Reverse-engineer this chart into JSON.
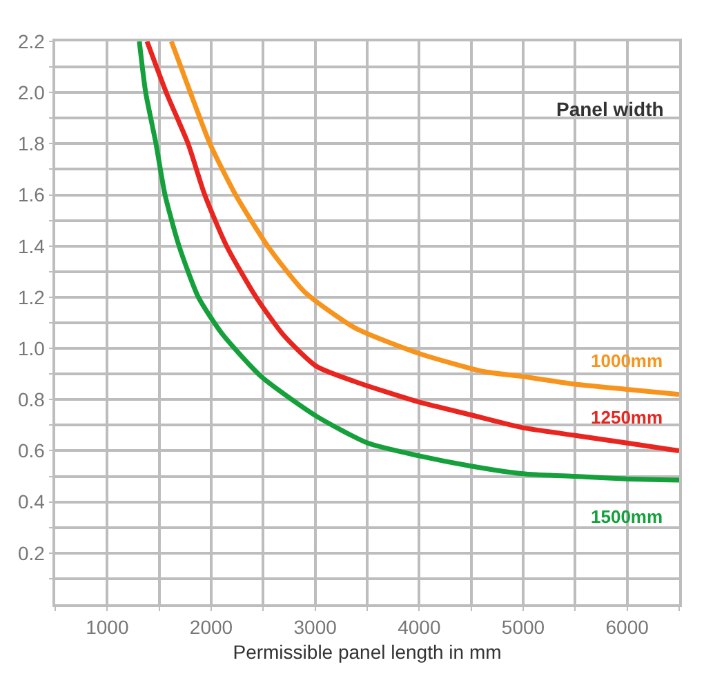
{
  "chart_data": {
    "type": "line",
    "xlabel": "Permissible panel length in mm",
    "series": [
      {
        "color": "#f7941d",
        "x": [
          1617,
          1800,
          1988,
          2235,
          2543,
          2900,
          3383,
          4000,
          4617,
          5000,
          5500,
          6000,
          6500
        ],
        "values": [
          2.2,
          2.0,
          1.8,
          1.6,
          1.4,
          1.22,
          1.08,
          0.98,
          0.91,
          0.89,
          0.86,
          0.84,
          0.82
        ]
      },
      {
        "color": "#e8251f",
        "x": [
          1383,
          1568,
          1778,
          1938,
          2148,
          2432,
          2700,
          3012,
          3383,
          4000,
          4500,
          5000,
          5500,
          6000,
          6500
        ],
        "values": [
          2.2,
          2.0,
          1.8,
          1.6,
          1.4,
          1.2,
          1.05,
          0.93,
          0.87,
          0.79,
          0.74,
          0.69,
          0.66,
          0.63,
          0.6
        ]
      },
      {
        "color": "#15a03c",
        "x": [
          1309,
          1370,
          1469,
          1556,
          1691,
          1877,
          2100,
          2481,
          3012,
          3506,
          4000,
          4500,
          5000,
          5500,
          6000,
          6500
        ],
        "values": [
          2.2,
          2.0,
          1.8,
          1.6,
          1.4,
          1.2,
          1.06,
          0.89,
          0.735,
          0.63,
          0.58,
          0.54,
          0.51,
          0.5,
          0.49,
          0.485
        ]
      }
    ],
    "xlim": [
      500,
      6500
    ],
    "xticks": [
      {
        "value": 500,
        "label": null
      },
      1000,
      {
        "value": 1500,
        "label": null
      },
      2000,
      {
        "value": 2500,
        "label": null
      },
      3000,
      {
        "value": 3500,
        "label": null
      },
      4000,
      {
        "value": 4500,
        "label": null
      },
      5000,
      {
        "value": 5500,
        "label": null
      },
      6000,
      {
        "value": 6500,
        "label": null
      }
    ],
    "ylim": [
      0,
      2.2
    ],
    "yticks": [
      {
        "value": 0.1,
        "label": null
      },
      0.2,
      {
        "value": 0.3,
        "label": null
      },
      0.4,
      {
        "value": 0.5,
        "label": null
      },
      0.6,
      {
        "value": 0.7,
        "label": null
      },
      0.8,
      {
        "value": 0.9,
        "label": null
      },
      {
        "value": 1.0,
        "label": "1.0"
      },
      {
        "value": 1.1,
        "label": null
      },
      1.2,
      {
        "value": 1.3,
        "label": null
      },
      1.4,
      {
        "value": 1.5,
        "label": null
      },
      1.6,
      {
        "value": 1.7,
        "label": null
      },
      1.8,
      {
        "value": 1.9,
        "label": null
      },
      {
        "value": 2.0,
        "label": "2.0"
      },
      {
        "value": 2.1,
        "label": null
      },
      2.2
    ],
    "grid": true,
    "marker": "none",
    "line_style": "solid",
    "annotations": [
      "Panel width",
      "1000mm",
      "1250mm",
      "1500mm"
    ]
  }
}
